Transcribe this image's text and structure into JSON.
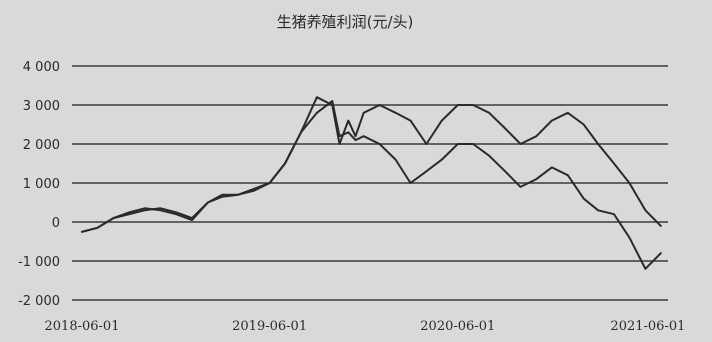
{
  "chart_data": {
    "type": "line",
    "title": "生猪养殖利润(元/头)",
    "x_tick_labels": [
      "2018-06-01",
      "2019-06-01",
      "2020-06-01",
      "2021-06-01"
    ],
    "y_tick_labels": [
      "4 000",
      "3 000",
      "2 000",
      "1 000",
      "0",
      "-1 000",
      "-2 000"
    ],
    "ylim": [
      -2000,
      4000
    ],
    "xlim": [
      "2018-06-01",
      "2021-07-15"
    ],
    "grid": true,
    "series": [
      {
        "x": [
          "2018-06-01",
          "2018-07-01",
          "2018-08-01",
          "2018-09-01",
          "2018-10-01",
          "2018-11-01",
          "2018-12-01",
          "2019-01-01",
          "2019-02-01",
          "2019-03-01",
          "2019-04-01",
          "2019-05-01",
          "2019-06-01",
          "2019-07-01",
          "2019-08-01",
          "2019-09-01",
          "2019-10-01",
          "2019-10-15",
          "2019-11-01",
          "2019-11-15",
          "2019-12-01",
          "2020-01-01",
          "2020-02-01",
          "2020-03-01",
          "2020-04-01",
          "2020-05-01",
          "2020-06-01",
          "2020-07-01",
          "2020-08-01",
          "2020-09-01",
          "2020-10-01",
          "2020-11-01",
          "2020-12-01",
          "2021-01-01",
          "2021-02-01",
          "2021-03-01",
          "2021-04-01",
          "2021-05-01",
          "2021-06-01",
          "2021-07-01"
        ],
        "values": [
          -250,
          -150,
          100,
          200,
          300,
          350,
          250,
          100,
          500,
          700,
          700,
          800,
          1000,
          1500,
          2300,
          3200,
          3000,
          2000,
          2600,
          2200,
          2800,
          3000,
          2800,
          2600,
          2000,
          2600,
          3000,
          3000,
          2800,
          2400,
          2000,
          2200,
          2600,
          2800,
          2500,
          2000,
          1500,
          1000,
          300,
          -100
        ]
      },
      {
        "x": [
          "2018-06-01",
          "2018-07-01",
          "2018-08-01",
          "2018-09-01",
          "2018-10-01",
          "2018-11-01",
          "2018-12-01",
          "2019-01-01",
          "2019-02-01",
          "2019-03-01",
          "2019-04-01",
          "2019-05-01",
          "2019-06-01",
          "2019-07-01",
          "2019-08-01",
          "2019-09-01",
          "2019-10-01",
          "2019-10-15",
          "2019-11-01",
          "2019-11-15",
          "2019-12-01",
          "2020-01-01",
          "2020-02-01",
          "2020-03-01",
          "2020-04-01",
          "2020-05-01",
          "2020-06-01",
          "2020-07-01",
          "2020-08-01",
          "2020-09-01",
          "2020-10-01",
          "2020-11-01",
          "2020-12-01",
          "2021-01-01",
          "2021-02-01",
          "2021-03-01",
          "2021-04-01",
          "2021-05-01",
          "2021-06-01",
          "2021-07-01"
        ],
        "values": [
          -250,
          -150,
          100,
          250,
          350,
          300,
          200,
          50,
          500,
          650,
          700,
          850,
          1000,
          1500,
          2300,
          2800,
          3100,
          2200,
          2300,
          2100,
          2200,
          2000,
          1600,
          1000,
          1300,
          1600,
          2000,
          2000,
          1700,
          1300,
          900,
          1100,
          1400,
          1200,
          600,
          300,
          200,
          -400,
          -1200,
          -800
        ]
      }
    ]
  },
  "colors": {
    "line": "#2a2a2a",
    "grid": "#3a3a3a",
    "background": "#d9d9d7",
    "text": "#2b2b2b"
  }
}
